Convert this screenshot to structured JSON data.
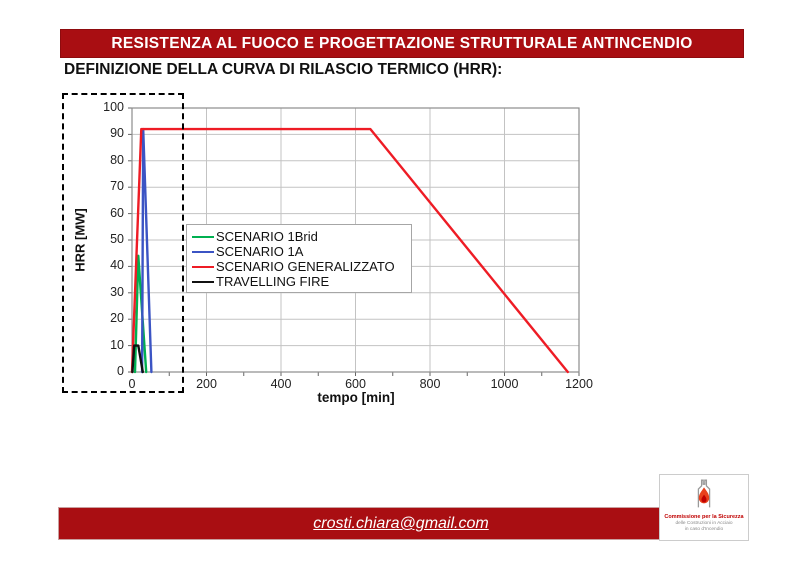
{
  "header": {
    "title": "RESISTENZA AL FUOCO E PROGETTAZIONE STRUTTURALE ANTINCENDIO"
  },
  "subtitle": "DEFINIZIONE DELLA CURVA DI RILASCIO TERMICO (HRR):",
  "footer": {
    "email": "crosti.chiara@gmail.com"
  },
  "logo": {
    "line1": "Commissione per la Sicurezza",
    "line2": "delle Costruzioni in Acciaio",
    "line3": "in caso d'Incendio"
  },
  "colors": {
    "banner": "#A90E12",
    "grid": "#c3c3c3",
    "plot_border": "#8c8c8c"
  },
  "chart_data": {
    "type": "line",
    "title": "",
    "xlabel": "tempo [min]",
    "ylabel": "HRR [MW]",
    "xlim": [
      0,
      1200
    ],
    "ylim": [
      0,
      100
    ],
    "xticks": [
      0,
      200,
      400,
      600,
      800,
      1000,
      1200
    ],
    "x_minor_step": 100,
    "yticks": [
      0,
      10,
      20,
      30,
      40,
      50,
      60,
      70,
      80,
      90,
      100
    ],
    "grid": true,
    "legend_position": "inside-middle-left",
    "series": [
      {
        "name": "SCENARIO 1Brid",
        "color": "#00B050",
        "points": [
          [
            8,
            0
          ],
          [
            17,
            44
          ],
          [
            38,
            0
          ]
        ]
      },
      {
        "name": "SCENARIO 1A",
        "color": "#3B54C4",
        "points": [
          [
            27,
            0
          ],
          [
            30,
            92
          ],
          [
            52,
            0
          ]
        ]
      },
      {
        "name": "SCENARIO GENERALIZZATO",
        "color": "#EE1C25",
        "points": [
          [
            0,
            0
          ],
          [
            25,
            92
          ],
          [
            640,
            92
          ],
          [
            1170,
            0
          ]
        ]
      },
      {
        "name": "TRAVELLING FIRE",
        "color": "#111111",
        "points": [
          [
            1,
            0
          ],
          [
            6,
            10
          ],
          [
            17,
            10
          ],
          [
            29,
            0
          ]
        ]
      }
    ],
    "annotations": [
      {
        "type": "dashed-rect",
        "x_range": [
          0,
          140
        ],
        "note": "highlight of early fire growth region"
      }
    ]
  }
}
